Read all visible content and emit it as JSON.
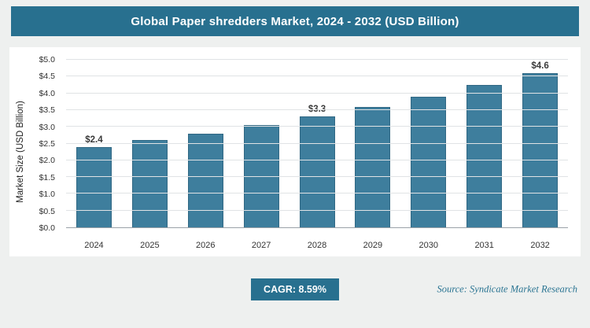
{
  "page": {
    "title": "Global Paper shredders Market, 2024 - 2032 (USD Billion)",
    "cagr_label": "CAGR: 8.59%",
    "source": "Source: Syndicate Market Research"
  },
  "chart_data": {
    "type": "bar",
    "title": "Global Paper shredders Market, 2024 - 2032 (USD Billion)",
    "xlabel": "",
    "ylabel": "Market Size (USD Billion)",
    "categories": [
      "2024",
      "2025",
      "2026",
      "2027",
      "2028",
      "2029",
      "2030",
      "2031",
      "2032"
    ],
    "values": [
      2.4,
      2.6,
      2.8,
      3.05,
      3.3,
      3.6,
      3.9,
      4.25,
      4.6
    ],
    "data_labels": [
      "$2.4",
      null,
      null,
      null,
      "$3.3",
      null,
      null,
      null,
      "$4.6"
    ],
    "ylim": [
      0,
      5
    ],
    "ytick_step": 0.5,
    "ytick_prefix": "$",
    "grid": true,
    "legend": false,
    "cagr": "8.59%"
  },
  "colors": {
    "accent": "#28708f",
    "bar": "#3e7e9d",
    "background": "#eef0ef"
  }
}
